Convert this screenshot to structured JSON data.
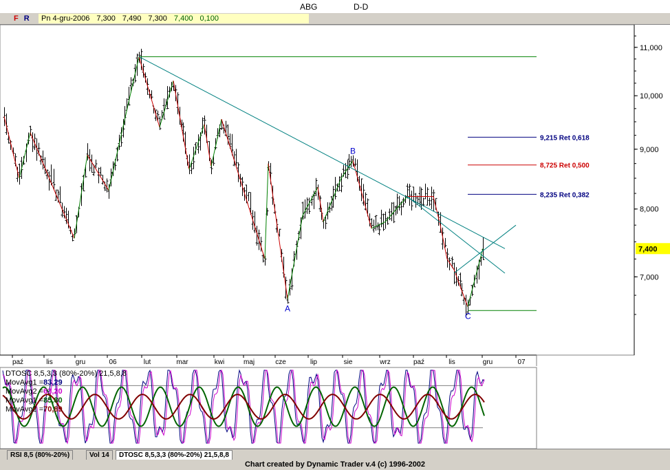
{
  "header": {
    "symbol": "ABG",
    "period": "D-D",
    "f_button": "F",
    "r_button": "R",
    "quote": {
      "date": "Pn 4-gru-2006",
      "open": "7,300",
      "high": "7,490",
      "low": "7,300",
      "close": "7,400",
      "change": "0,100"
    }
  },
  "colors": {
    "bar": "#000000",
    "uptrend": "#008000",
    "downtrend": "#cc0000",
    "trendline": "#008080",
    "retrace_blue": "#000080",
    "retrace_red": "#cc0000",
    "macd1": "#000080",
    "macd2": "#cc00cc",
    "mov1": "#006400",
    "mov2": "#800000",
    "price_tag": "#ffff00"
  },
  "tabs": [
    {
      "label": "RSI 8,5 (80%-20%)",
      "active": false
    },
    {
      "label": "Vol 14",
      "active": false
    },
    {
      "label": "DTOSC 8,5,3,3 (80%-20%) 21,5,8,8",
      "active": true
    }
  ],
  "footer": "Chart created by Dynamic Trader v.4  (c) 1996-2002",
  "chart_data": {
    "type": "bar",
    "ylim": [
      6.0,
      11.5
    ],
    "y_scale": "log",
    "y_ticks": [
      {
        "value": 7.0,
        "label": "7,000"
      },
      {
        "value": 8.0,
        "label": "8,000"
      },
      {
        "value": 9.0,
        "label": "9,000"
      },
      {
        "value": 10.0,
        "label": "10,000"
      },
      {
        "value": 11.0,
        "label": "11,000"
      }
    ],
    "last_price": {
      "value": 7.4,
      "label": "7,400"
    },
    "x_months": [
      "paź",
      "lis",
      "gru",
      "06",
      "lut",
      "mar",
      "kwi",
      "maj",
      "cze",
      "lip",
      "sie",
      "wrz",
      "paź",
      "lis",
      "gru",
      "07"
    ],
    "swing_points": [
      {
        "label": "",
        "value": 9.6
      },
      {
        "label": "",
        "value": 8.5
      },
      {
        "label": "",
        "value": 9.3
      },
      {
        "label": "",
        "value": 7.55
      },
      {
        "label": "",
        "value": 8.9
      },
      {
        "label": "",
        "value": 8.3
      },
      {
        "label": "",
        "value": 10.8
      },
      {
        "label": "",
        "value": 9.4
      },
      {
        "label": "",
        "value": 10.3
      },
      {
        "label": "",
        "value": 8.65
      },
      {
        "label": "",
        "value": 9.45
      },
      {
        "label": "",
        "value": 8.7
      },
      {
        "label": "",
        "value": 9.55
      },
      {
        "label": "",
        "value": 7.25
      },
      {
        "label": "",
        "value": 8.75
      },
      {
        "label": "A",
        "value": 6.7
      },
      {
        "label": "",
        "value": 8.35
      },
      {
        "label": "",
        "value": 7.9
      },
      {
        "label": "",
        "value": 8.5
      },
      {
        "label": "",
        "value": 7.8
      },
      {
        "label": "B",
        "value": 8.8
      },
      {
        "label": "",
        "value": 7.7
      },
      {
        "label": "",
        "value": 8.2
      },
      {
        "label": "",
        "value": 7.8
      },
      {
        "label": "",
        "value": 8.2
      },
      {
        "label": "",
        "value": 7.75
      },
      {
        "label": "",
        "value": 7.1
      },
      {
        "label": "",
        "value": 7.25
      },
      {
        "label": "C",
        "value": 6.6
      },
      {
        "label": "",
        "value": 7.4
      }
    ],
    "horizontal_levels": [
      {
        "value": 10.8,
        "label": ""
      },
      {
        "value": 6.55,
        "label": ""
      }
    ],
    "retracements": [
      {
        "value": 9.215,
        "label": "9,215 Ret 0,618",
        "color": "#000080"
      },
      {
        "value": 8.725,
        "label": "8,725 Ret 0,500",
        "color": "#cc0000"
      },
      {
        "value": 8.235,
        "label": "8,235 Ret 0,382",
        "color": "#000080"
      }
    ],
    "oscillator": {
      "title": "DTOSC 8,5,3,3 (80%-20%) 21,5,8,8",
      "series": [
        {
          "name": "MovAvg1",
          "value": "83,29",
          "color": "#000080"
        },
        {
          "name": "MovAvg2",
          "value": "63,20",
          "color": "#cc00cc"
        },
        {
          "name": "MovAvg1",
          "value": "85,80",
          "color": "#006400"
        },
        {
          "name": "MovAvg2",
          "value": "70,89",
          "color": "#800000"
        }
      ],
      "levels": [
        80,
        20
      ]
    }
  }
}
